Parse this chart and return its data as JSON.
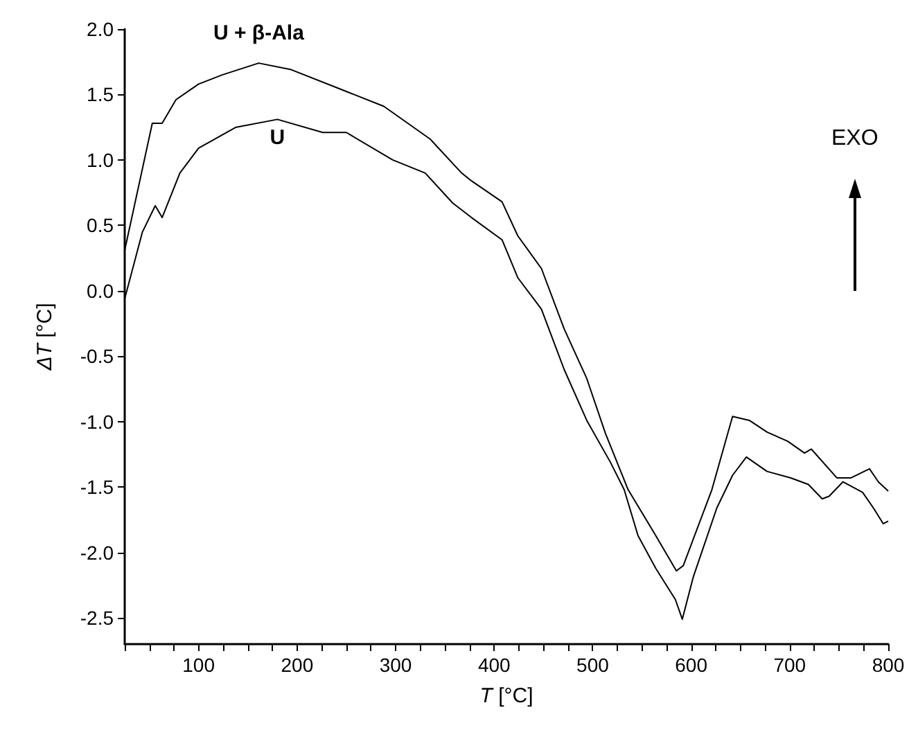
{
  "chart_data": {
    "type": "line",
    "xlabel": "T [°C]",
    "ylabel": "ΔT [°C]",
    "xlim": [
      25,
      800
    ],
    "ylim": [
      -2.7,
      2.0
    ],
    "xticks": [
      {
        "value": 25,
        "label": null
      },
      {
        "value": 50,
        "label": null
      },
      {
        "value": 75,
        "label": null
      },
      100,
      {
        "value": 125,
        "label": null
      },
      {
        "value": 150,
        "label": null
      },
      {
        "value": 175,
        "label": null
      },
      200,
      {
        "value": 225,
        "label": null
      },
      {
        "value": 250,
        "label": null
      },
      {
        "value": 275,
        "label": null
      },
      300,
      {
        "value": 325,
        "label": null
      },
      {
        "value": 350,
        "label": null
      },
      {
        "value": 375,
        "label": null
      },
      400,
      {
        "value": 425,
        "label": null
      },
      {
        "value": 450,
        "label": null
      },
      {
        "value": 475,
        "label": null
      },
      500,
      {
        "value": 525,
        "label": null
      },
      {
        "value": 550,
        "label": null
      },
      {
        "value": 575,
        "label": null
      },
      600,
      {
        "value": 625,
        "label": null
      },
      {
        "value": 650,
        "label": null
      },
      {
        "value": 675,
        "label": null
      },
      700,
      {
        "value": 725,
        "label": null
      },
      {
        "value": 750,
        "label": null
      },
      {
        "value": 775,
        "label": null
      },
      800
    ],
    "yticks": [
      {
        "value": -2.5,
        "label": "-2.5"
      },
      {
        "value": -2.0,
        "label": "-2.0"
      },
      {
        "value": -1.5,
        "label": "-1.5"
      },
      {
        "value": -1.0,
        "label": "-1.0"
      },
      {
        "value": -0.5,
        "label": "-0.5"
      },
      {
        "value": 0.0,
        "label": "0.0"
      },
      {
        "value": 0.5,
        "label": "0.5"
      },
      {
        "value": 1.0,
        "label": "1.0"
      },
      {
        "value": 1.5,
        "label": "1.5"
      },
      {
        "value": 2.0,
        "label": "2.0"
      }
    ],
    "grid": false,
    "legend": false,
    "marker": "none",
    "line_style": "solid",
    "annotations": [
      "EXO"
    ],
    "series": [
      {
        "name": "U + β-Ala",
        "color": "#000000",
        "x": [
          25,
          53,
          63,
          77,
          100,
          124,
          161,
          194,
          241,
          288,
          335,
          367,
          377,
          408,
          424,
          448,
          471,
          494,
          513,
          536,
          564,
          585,
          592,
          621,
          642,
          659,
          677,
          698,
          715,
          722,
          748,
          762,
          781,
          790,
          800
        ],
        "values": [
          0.31,
          1.28,
          1.28,
          1.46,
          1.58,
          1.65,
          1.74,
          1.69,
          1.55,
          1.41,
          1.16,
          0.9,
          0.84,
          0.68,
          0.42,
          0.17,
          -0.29,
          -0.67,
          -1.09,
          -1.52,
          -1.87,
          -2.14,
          -2.1,
          -1.52,
          -0.96,
          -0.99,
          -1.08,
          -1.15,
          -1.24,
          -1.21,
          -1.43,
          -1.43,
          -1.36,
          -1.46,
          -1.53
        ]
      },
      {
        "name": "U",
        "color": "#000000",
        "x": [
          25,
          43,
          56,
          63,
          81,
          100,
          138,
          180,
          226,
          250,
          297,
          330,
          358,
          377,
          408,
          424,
          448,
          471,
          494,
          518,
          532,
          546,
          564,
          584,
          591,
          602,
          626,
          642,
          656,
          677,
          701,
          719,
          733,
          740,
          754,
          774,
          785,
          795,
          800
        ],
        "values": [
          -0.06,
          0.45,
          0.65,
          0.56,
          0.9,
          1.09,
          1.25,
          1.31,
          1.21,
          1.21,
          1.0,
          0.9,
          0.67,
          0.56,
          0.39,
          0.1,
          -0.14,
          -0.6,
          -0.99,
          -1.31,
          -1.52,
          -1.87,
          -2.12,
          -2.36,
          -2.51,
          -2.19,
          -1.66,
          -1.41,
          -1.27,
          -1.38,
          -1.43,
          -1.48,
          -1.59,
          -1.57,
          -1.46,
          -1.54,
          -1.66,
          -1.78,
          -1.76
        ]
      }
    ]
  }
}
